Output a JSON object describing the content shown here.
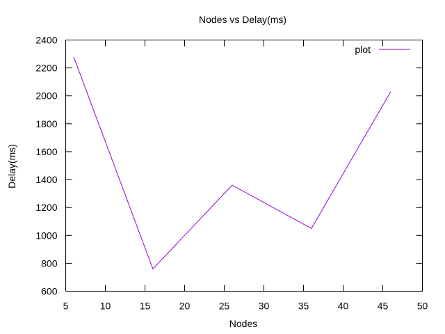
{
  "chart_data": {
    "type": "line",
    "title": "Nodes vs Delay(ms)",
    "xlabel": "Nodes",
    "ylabel": "Delay(ms)",
    "xlim": [
      5,
      50
    ],
    "ylim": [
      600,
      2400
    ],
    "xticks": [
      5,
      10,
      15,
      20,
      25,
      30,
      35,
      40,
      45,
      50
    ],
    "yticks": [
      600,
      800,
      1000,
      1200,
      1400,
      1600,
      1800,
      2000,
      2200,
      2400
    ],
    "grid": false,
    "legend_position": "top-right",
    "series": [
      {
        "name": "plot",
        "color": "#9400d3",
        "x": [
          6,
          16,
          26,
          36,
          46
        ],
        "y": [
          2280,
          760,
          1360,
          1050,
          2030
        ]
      }
    ]
  }
}
